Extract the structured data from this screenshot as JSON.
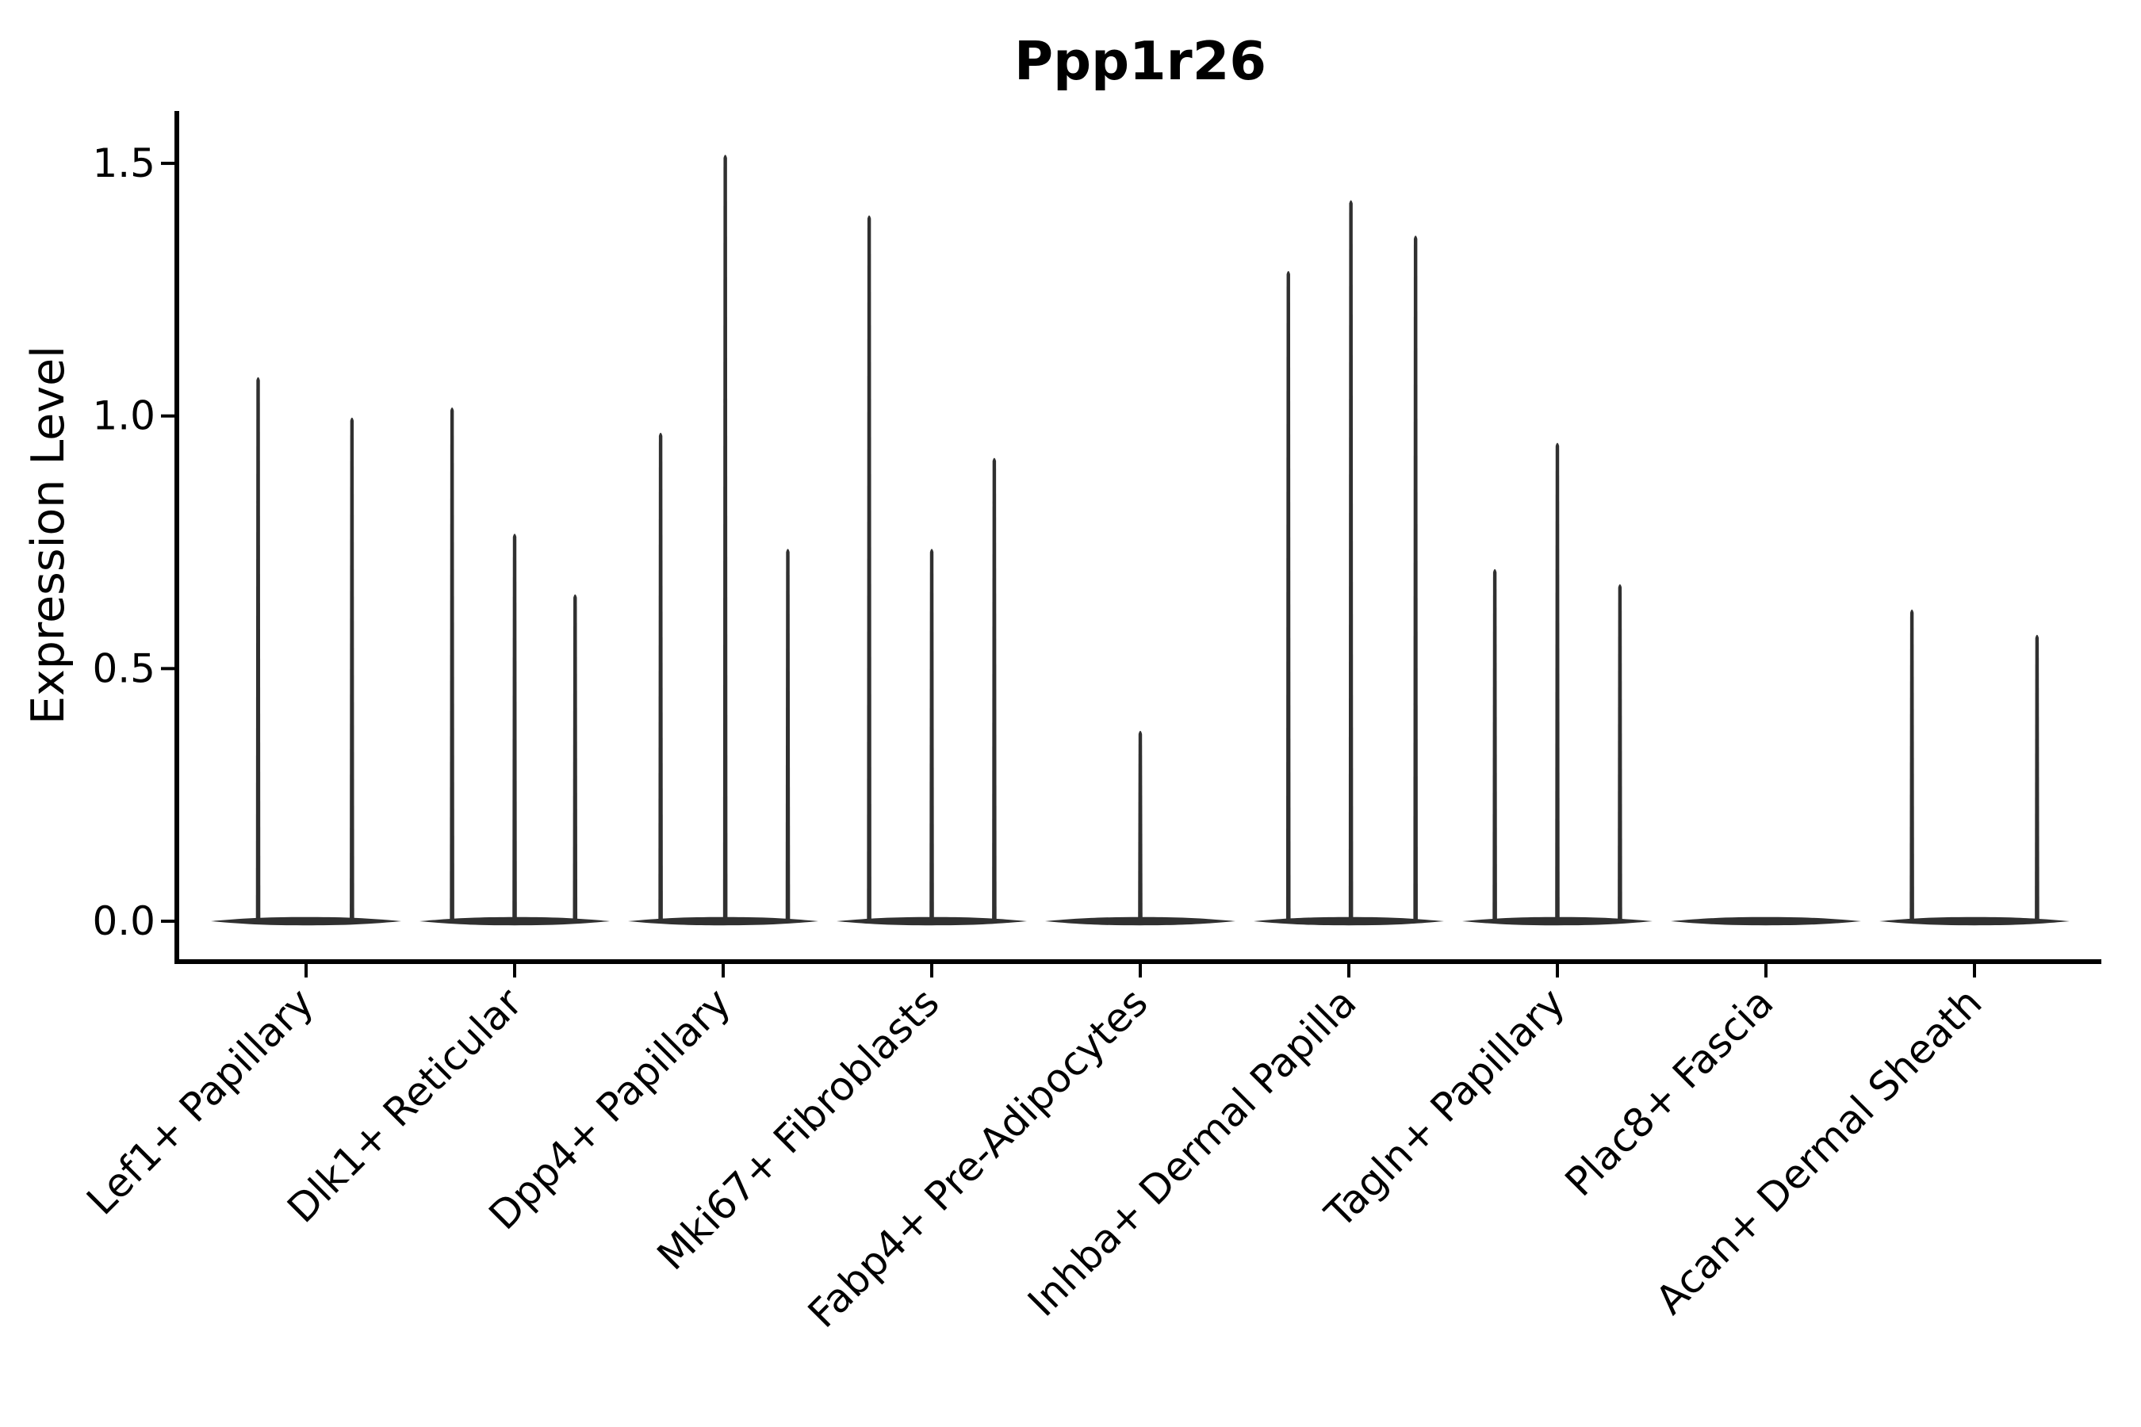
{
  "figure": {
    "title": "Ppp1r26",
    "background": "#ffffff"
  },
  "chart_data": {
    "type": "violin",
    "title": "Ppp1r26",
    "xlabel": "",
    "ylabel": "Expression Level",
    "ylim": [
      -0.075,
      1.6
    ],
    "grid": false,
    "legend": "none",
    "yticks": {
      "values": [
        0.0,
        0.5,
        1.0,
        1.5
      ],
      "labels": [
        "0.0",
        "0.5",
        "1.0",
        "1.5"
      ]
    },
    "colors": {
      "violin": "#303030",
      "axis": "#000000",
      "text": "#000000",
      "background": "#ffffff"
    },
    "note": "Collapsed violins: wide flat density blob at 0 per cell type, with narrow density spikes at expressing-cell values; spike offset is fraction of category width from category center",
    "categories": [
      {
        "label": "Lef1+ Papillary",
        "spikes": [
          {
            "offset": -0.23,
            "value": 1.08
          },
          {
            "offset": 0.22,
            "value": 1.0
          }
        ]
      },
      {
        "label": "Dlk1+ Reticular",
        "spikes": [
          {
            "offset": -0.3,
            "value": 1.02
          },
          {
            "offset": 0.0,
            "value": 0.77
          },
          {
            "offset": 0.29,
            "value": 0.65
          }
        ]
      },
      {
        "label": "Dpp4+ Papillary",
        "spikes": [
          {
            "offset": -0.3,
            "value": 0.97
          },
          {
            "offset": 0.01,
            "value": 1.52
          },
          {
            "offset": 0.31,
            "value": 0.74
          }
        ]
      },
      {
        "label": "Mki67+ Fibroblasts",
        "spikes": [
          {
            "offset": -0.3,
            "value": 1.4
          },
          {
            "offset": 0.0,
            "value": 0.74
          },
          {
            "offset": 0.3,
            "value": 0.92
          }
        ]
      },
      {
        "label": "Fabp4+ Pre-Adipocytes",
        "spikes": [
          {
            "offset": 0.0,
            "value": 0.38
          }
        ]
      },
      {
        "label": "Inhba+ Dermal Papilla",
        "spikes": [
          {
            "offset": -0.29,
            "value": 1.29
          },
          {
            "offset": 0.01,
            "value": 1.43
          },
          {
            "offset": 0.32,
            "value": 1.36
          }
        ]
      },
      {
        "label": "Tagln+ Papillary",
        "spikes": [
          {
            "offset": -0.3,
            "value": 0.7
          },
          {
            "offset": 0.0,
            "value": 0.95
          },
          {
            "offset": 0.3,
            "value": 0.67
          }
        ]
      },
      {
        "label": "Plac8+ Fascia",
        "spikes": []
      },
      {
        "label": "Acan+ Dermal Sheath",
        "spikes": [
          {
            "offset": -0.3,
            "value": 0.62
          },
          {
            "offset": 0.3,
            "value": 0.57
          }
        ]
      }
    ]
  }
}
